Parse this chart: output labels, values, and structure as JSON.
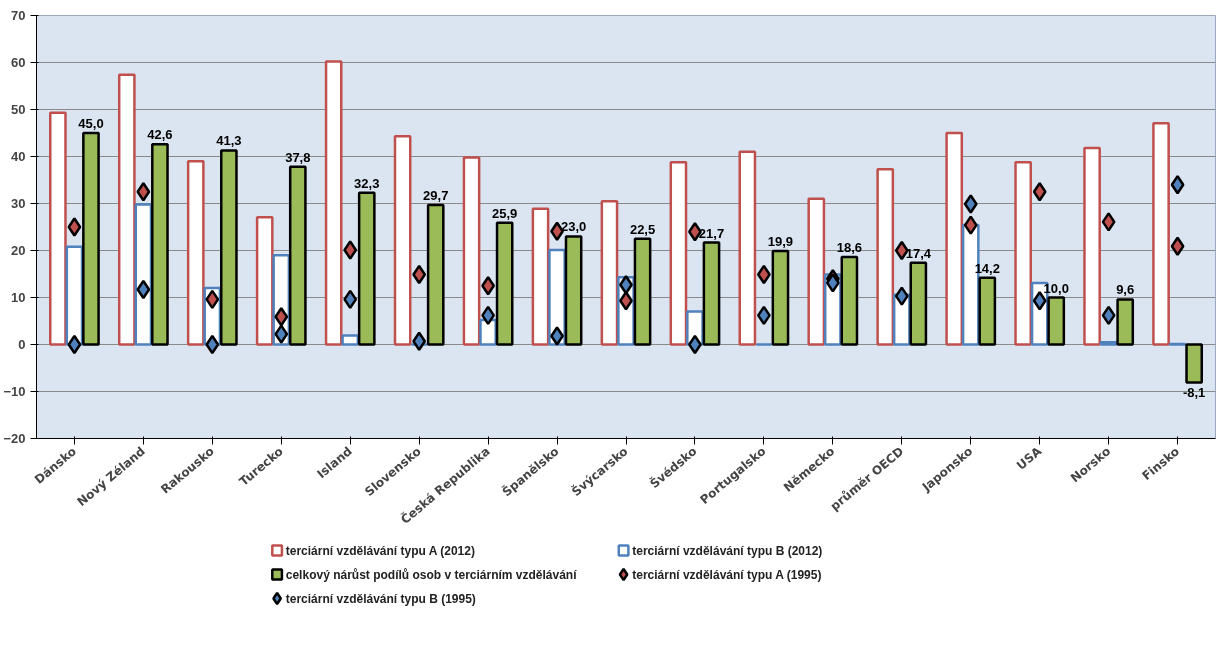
{
  "chart_data": {
    "type": "bar",
    "categories": [
      "Dánsko",
      "Nový Zéland",
      "Rakousko",
      "Turecko",
      "Island",
      "Slovensko",
      "Česká Republika",
      "Španělsko",
      "Švýcarsko",
      "Švédsko",
      "Portugalsko",
      "Německo",
      "průměr OECD",
      "Japonsko",
      "USA",
      "Norsko",
      "Finsko"
    ],
    "series": [
      {
        "name": "terciární vzdělávání typu A (2012)",
        "color": "#c0504d",
        "values": [
          49.3,
          57.4,
          39.0,
          27.1,
          60.2,
          44.3,
          39.8,
          28.9,
          30.5,
          38.8,
          41.0,
          31.0,
          37.3,
          45.0,
          38.8,
          41.8,
          47.1
        ]
      },
      {
        "name": "terciární vzdělávání typu B (2012)",
        "color": "#4f81bd",
        "values": [
          20.8,
          29.8,
          12.0,
          19.0,
          1.9,
          0,
          5.2,
          20.1,
          14.3,
          7.0,
          0,
          14.9,
          10.6,
          25.4,
          13.1,
          0.5,
          0.1
        ]
      },
      {
        "name": "celkový nárůst podílů osob v terciárním vzdělávání",
        "color": "#9bbb59",
        "values": [
          45.0,
          42.6,
          41.3,
          37.8,
          32.3,
          29.7,
          25.9,
          23.0,
          22.5,
          21.7,
          19.9,
          18.6,
          17.4,
          14.2,
          10.0,
          9.6,
          -8.1
        ],
        "value_labels": [
          "45,0",
          "42,6",
          "41,3",
          "37,8",
          "32,3",
          "29,7",
          "25,9",
          "23,0",
          "22,5",
          "21,7",
          "19,9",
          "18,6",
          "17,4",
          "14,2",
          "10,0",
          "9,6",
          "-8,1"
        ]
      },
      {
        "name": "terciární vzdělávání typu A (1995)",
        "type": "scatter",
        "color": "#c0504d",
        "values": [
          25.0,
          32.5,
          9.6,
          5.9,
          20.1,
          14.9,
          12.5,
          24.1,
          9.3,
          24.0,
          14.9,
          14.0,
          20.0,
          25.4,
          32.5,
          26.1,
          20.9
        ]
      },
      {
        "name": "terciární vzdělávání typu B (1995)",
        "type": "scatter",
        "color": "#4f81bd",
        "values": [
          0,
          11.7,
          0,
          2.2,
          9.6,
          0.7,
          6.2,
          1.8,
          12.7,
          0,
          6.2,
          13.1,
          10.3,
          29.9,
          9.3,
          6.2,
          34.0
        ]
      }
    ],
    "ylim": [
      -20,
      70
    ],
    "yticks": [
      -20,
      -10,
      0,
      10,
      20,
      30,
      40,
      50,
      60,
      70
    ],
    "grid": "y",
    "legend": "bottom",
    "marker": "diamond"
  }
}
